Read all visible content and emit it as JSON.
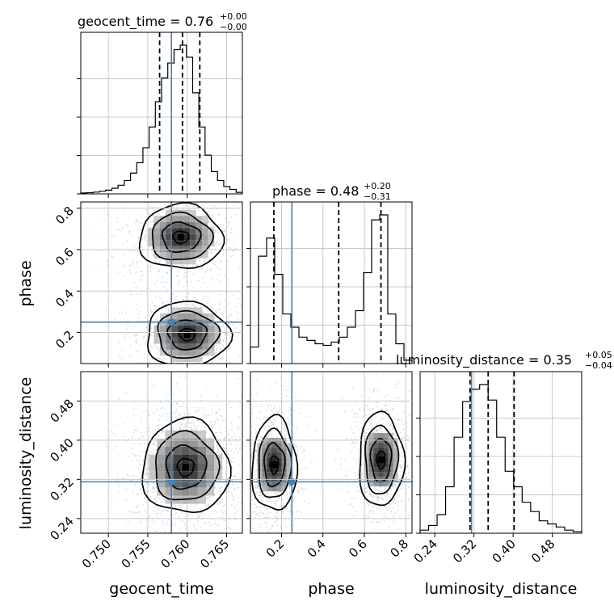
{
  "chart_data": {
    "type": "corner",
    "parameters": [
      "geocent_time",
      "phase",
      "luminosity_distance"
    ],
    "truths": {
      "geocent_time": 0.758,
      "phase": 0.25,
      "luminosity_distance": 0.315
    },
    "truth_color": "#4682b4",
    "titles": {
      "geocent_time": {
        "prefix": "geocent_time = 0.76",
        "plus": "+0.00",
        "minus": "−0.00"
      },
      "phase": {
        "prefix": "phase = 0.48",
        "plus": "+0.20",
        "minus": "−0.31"
      },
      "luminosity_distance": {
        "prefix": "luminosity_distance = 0.35",
        "plus": "+0.05",
        "minus": "−0.04"
      }
    },
    "axis_labels": {
      "x": [
        "geocent_time",
        "phase",
        "luminosity_distance"
      ],
      "y": [
        "phase",
        "luminosity_distance"
      ]
    },
    "ranges": {
      "geocent_time": [
        0.7465,
        0.767
      ],
      "phase": [
        0.05,
        0.83
      ],
      "luminosity_distance": [
        0.21,
        0.54
      ]
    },
    "ticks": {
      "geocent_time": {
        "values": [
          0.75,
          0.755,
          0.76,
          0.765
        ],
        "labels": [
          "0.750",
          "0.755",
          "0.760",
          "0.765"
        ]
      },
      "phase": {
        "values": [
          0.2,
          0.4,
          0.6,
          0.8
        ],
        "labels": [
          "0.2",
          "0.4",
          "0.6",
          "0.8"
        ]
      },
      "luminosity_distance": {
        "values": [
          0.24,
          0.32,
          0.4,
          0.48
        ],
        "labels": [
          "0.24",
          "0.32",
          "0.40",
          "0.48"
        ]
      }
    },
    "quantiles": {
      "geocent_time": [
        0.7565,
        0.7594,
        0.7616
      ],
      "phase": [
        0.163,
        0.476,
        0.68
      ],
      "luminosity_distance": [
        0.312,
        0.349,
        0.402
      ]
    },
    "histograms": {
      "geocent_time": {
        "range": [
          0.7465,
          0.767
        ],
        "counts": [
          0.006,
          0.008,
          0.012,
          0.018,
          0.025,
          0.038,
          0.058,
          0.09,
          0.14,
          0.21,
          0.31,
          0.45,
          0.62,
          0.78,
          0.88,
          0.97,
          1.0,
          0.92,
          0.68,
          0.45,
          0.26,
          0.15,
          0.09,
          0.05,
          0.03,
          0.01
        ]
      },
      "phase": {
        "range": [
          0.05,
          0.83
        ],
        "counts": [
          0.1,
          0.65,
          0.76,
          0.54,
          0.3,
          0.22,
          0.16,
          0.14,
          0.12,
          0.11,
          0.13,
          0.16,
          0.22,
          0.32,
          0.55,
          0.87,
          0.9,
          0.3,
          0.12,
          0.02
        ]
      },
      "luminosity_distance": {
        "range": [
          0.21,
          0.54
        ],
        "counts": [
          0.02,
          0.05,
          0.12,
          0.3,
          0.62,
          0.85,
          0.93,
          0.96,
          0.86,
          0.62,
          0.4,
          0.3,
          0.2,
          0.14,
          0.08,
          0.06,
          0.04,
          0.02,
          0.01
        ]
      }
    },
    "modes": {
      "geocent_time_phase": [
        {
          "x": 0.7592,
          "y": 0.66,
          "sx": 0.0022,
          "sy": 0.065,
          "weight": 0.55
        },
        {
          "x": 0.76,
          "y": 0.19,
          "sx": 0.0022,
          "sy": 0.065,
          "weight": 0.45
        }
      ],
      "geocent_time_luminosity_distance": [
        {
          "x": 0.7598,
          "y": 0.345,
          "sx": 0.0023,
          "sy": 0.04,
          "weight": 1.0
        }
      ],
      "phase_luminosity_distance": [
        {
          "x": 0.165,
          "y": 0.35,
          "sx": 0.045,
          "sy": 0.04,
          "weight": 0.5
        },
        {
          "x": 0.68,
          "y": 0.36,
          "sx": 0.045,
          "sy": 0.04,
          "weight": 0.5
        }
      ]
    },
    "grid": true
  }
}
